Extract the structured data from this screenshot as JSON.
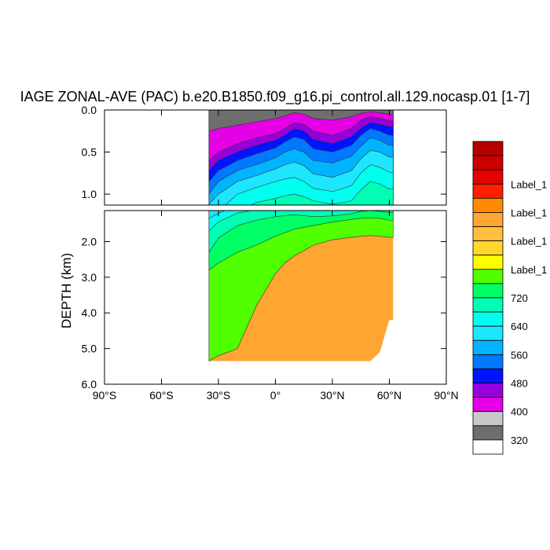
{
  "chart_data": {
    "type": "heatmap",
    "title": "IAGE ZONAL-AVE (PAC) b.e20.B1850.f09_g16.pi_control.all.129.nocasp.01 [1-7]",
    "ylabel": "DEPTH (km)",
    "xlim": [
      -90,
      90
    ],
    "ylim_upper": [
      0.0,
      1.13
    ],
    "ylim_lower": [
      1.13,
      6.0
    ],
    "x_ticks": [
      "90°S",
      "60°S",
      "30°S",
      "0°",
      "30°N",
      "60°N",
      "90°N"
    ],
    "x_tick_values": [
      -90,
      -60,
      -30,
      0,
      30,
      60,
      90
    ],
    "y_ticks_upper": [
      "0.0",
      "0.5",
      "1.0"
    ],
    "y_tick_values_upper": [
      0.0,
      0.5,
      1.0
    ],
    "y_ticks_lower": [
      "2.0",
      "3.0",
      "4.0",
      "5.0",
      "6.0"
    ],
    "y_tick_values_lower": [
      2.0,
      3.0,
      4.0,
      5.0,
      6.0
    ],
    "colorbar": {
      "colors": [
        "#b40000",
        "#cc0000",
        "#e60000",
        "#ff1e00",
        "#ff8a00",
        "#ffa532",
        "#ffbe3c",
        "#ffd72d",
        "#ffff00",
        "#50ff00",
        "#00ff64",
        "#00ffb4",
        "#00ffee",
        "#1ee6ff",
        "#00b4ff",
        "#0078ff",
        "#0014ff",
        "#9600dc",
        "#e600e6",
        "#c8c8c8",
        "#6e6e6e",
        "#ffffff"
      ],
      "labels": [
        "Label_1",
        "Label_1",
        "Label_1",
        "Label_1",
        "720",
        "640",
        "560",
        "480",
        "400",
        "320"
      ],
      "label_boundary_index": [
        3,
        5,
        7,
        9,
        11,
        13,
        15,
        17,
        19,
        21
      ]
    },
    "depth_of_level_boundaries": {
      "lat": [
        -35,
        -30,
        -20,
        -10,
        0,
        5,
        10,
        15,
        20,
        30,
        40,
        45,
        50,
        55,
        60,
        62
      ],
      "note_units": "km",
      "levels": [
        [
          0.25,
          0.22,
          0.18,
          0.14,
          0.1,
          0.07,
          0.03,
          0.05,
          0.1,
          0.12,
          0.08,
          0.04,
          0.02,
          0.03,
          0.05,
          0.05
        ],
        [
          0.6,
          0.5,
          0.4,
          0.33,
          0.28,
          0.22,
          0.15,
          0.17,
          0.25,
          0.3,
          0.22,
          0.12,
          0.08,
          0.1,
          0.13,
          0.13
        ],
        [
          0.72,
          0.6,
          0.5,
          0.42,
          0.36,
          0.3,
          0.22,
          0.25,
          0.35,
          0.4,
          0.32,
          0.22,
          0.15,
          0.17,
          0.2,
          0.2
        ],
        [
          0.85,
          0.72,
          0.6,
          0.52,
          0.45,
          0.38,
          0.32,
          0.35,
          0.46,
          0.5,
          0.42,
          0.3,
          0.22,
          0.25,
          0.3,
          0.3
        ],
        [
          1.0,
          0.85,
          0.72,
          0.65,
          0.57,
          0.5,
          0.46,
          0.5,
          0.6,
          0.63,
          0.55,
          0.43,
          0.33,
          0.36,
          0.42,
          0.42
        ],
        [
          1.12,
          1.0,
          0.85,
          0.78,
          0.7,
          0.65,
          0.62,
          0.66,
          0.76,
          0.8,
          0.72,
          0.58,
          0.48,
          0.5,
          0.56,
          0.56
        ],
        [
          1.35,
          1.2,
          1.0,
          0.92,
          0.85,
          0.82,
          0.8,
          0.85,
          0.93,
          0.97,
          0.9,
          0.75,
          0.65,
          0.68,
          0.74,
          0.74
        ],
        [
          1.7,
          1.45,
          1.2,
          1.1,
          1.05,
          1.02,
          1.0,
          1.03,
          1.08,
          1.12,
          1.08,
          0.95,
          0.85,
          0.88,
          0.94,
          0.94
        ],
        [
          2.3,
          1.9,
          1.55,
          1.4,
          1.3,
          1.27,
          1.25,
          1.27,
          1.3,
          1.28,
          1.22,
          1.15,
          1.13,
          1.15,
          1.18,
          1.18
        ],
        [
          2.8,
          2.6,
          2.3,
          2.1,
          1.85,
          1.75,
          1.65,
          1.6,
          1.55,
          1.45,
          1.38,
          1.35,
          1.33,
          1.35,
          1.4,
          1.4
        ],
        [
          5.4,
          5.2,
          5.0,
          3.8,
          2.9,
          2.6,
          2.4,
          2.25,
          2.1,
          1.95,
          1.88,
          1.85,
          1.83,
          1.85,
          1.88,
          1.88
        ]
      ],
      "level_colors": [
        "#6e6e6e",
        "#c8c8c8",
        "#e600e6",
        "#9600dc",
        "#0014ff",
        "#0078ff",
        "#00b4ff",
        "#1ee6ff",
        "#00ffee",
        "#00ffb4",
        "#00ff64",
        "#50ff00",
        "#ffff00",
        "#ffd72d",
        "#ffa532"
      ],
      "bottom_depth": [
        5.35,
        5.35,
        5.35,
        5.35,
        5.35,
        5.35,
        5.35,
        5.35,
        5.35,
        5.35,
        5.35,
        5.35,
        5.35,
        5.1,
        4.2,
        4.2
      ]
    }
  }
}
